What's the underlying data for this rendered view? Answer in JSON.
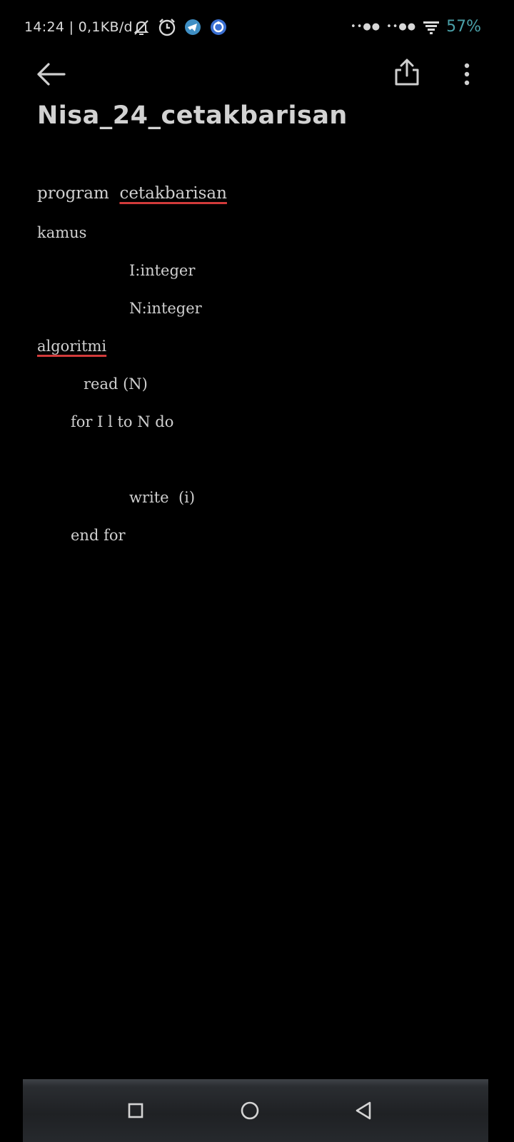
{
  "status_bar": {
    "time_speed": "14:24 | 0,1KB/d",
    "signal_1": "••●●",
    "signal_2": "••●●",
    "battery": "57%"
  },
  "app_bar": {
    "icons": [
      "back-arrow-icon",
      "share-icon",
      "more-vertical-icon"
    ]
  },
  "note": {
    "title": "Nisa_24_cetakbarisan",
    "lines": [
      {
        "pre": "program  ",
        "word": "cetakbarisan"
      },
      {
        "text": "kamus"
      },
      {
        "text": "I:integer"
      },
      {
        "text": "N:integer"
      },
      {
        "word": "algoritmi"
      },
      {
        "text": "read (N)"
      },
      {
        "text": "for I l to N do"
      },
      {
        "text": "write  (i)"
      },
      {
        "text": "end for"
      }
    ]
  },
  "nav_bar": {
    "icons": [
      "recents-square-icon",
      "home-circle-icon",
      "back-triangle-icon"
    ]
  },
  "colors": {
    "background": "#000000",
    "text": "#cfcfcf",
    "battery": "#4aa0a8",
    "spellcheck": "#d23b3b"
  }
}
